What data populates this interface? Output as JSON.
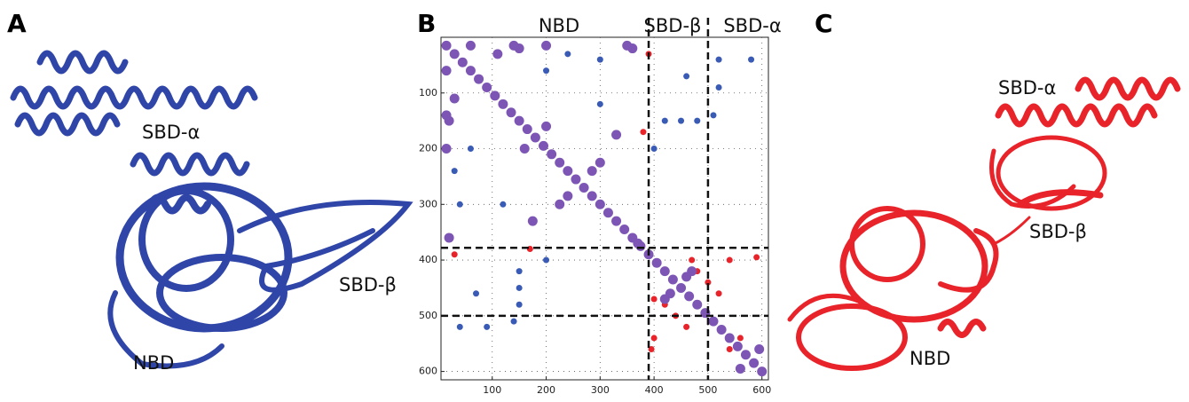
{
  "panels": [
    {
      "label": "A",
      "annotations": [
        "SBD-α",
        "SBD-β",
        "NBD"
      ]
    },
    {
      "label": "B"
    },
    {
      "label": "C",
      "annotations": [
        "SBD-α",
        "SBD-β",
        "NBD"
      ]
    }
  ],
  "chart_data": {
    "type": "scatter",
    "region_labels": [
      "NBD",
      "SBD-β",
      "SBD-α"
    ],
    "xlim": [
      5,
      612
    ],
    "ylim": [
      0,
      615
    ],
    "y_inverted": true,
    "xticks": [
      100,
      200,
      300,
      400,
      500,
      600
    ],
    "yticks": [
      100,
      200,
      300,
      400,
      500,
      600
    ],
    "grid": true,
    "dividers_x": [
      390,
      500
    ],
    "dividers_y": [
      378,
      500
    ],
    "series": [
      {
        "color": "#e8232a",
        "x": [
          470,
          480,
          500,
          520,
          540,
          400,
          420,
          440,
          460,
          400,
          380,
          170,
          390,
          30,
          560,
          540,
          395,
          590
        ],
        "y": [
          400,
          420,
          440,
          460,
          400,
          470,
          480,
          500,
          520,
          540,
          170,
          380,
          30,
          390,
          540,
          560,
          560,
          395
        ]
      },
      {
        "color": "#3a5bb5",
        "x": [
          420,
          450,
          480,
          510,
          520,
          520,
          580,
          460,
          150,
          150,
          150,
          140,
          90,
          40,
          70,
          240,
          30,
          300,
          40,
          120,
          300,
          60,
          200,
          400,
          200
        ],
        "y": [
          150,
          150,
          150,
          140,
          90,
          40,
          40,
          70,
          420,
          450,
          480,
          510,
          520,
          520,
          460,
          30,
          240,
          40,
          300,
          300,
          120,
          200,
          60,
          200,
          400
        ]
      },
      {
        "color": "#7d55b4",
        "x": [
          15,
          30,
          45,
          60,
          75,
          90,
          105,
          120,
          135,
          150,
          165,
          180,
          195,
          210,
          225,
          240,
          255,
          270,
          285,
          300,
          315,
          330,
          345,
          360,
          375,
          390,
          405,
          420,
          435,
          450,
          465,
          480,
          495,
          510,
          525,
          540,
          555,
          570,
          585,
          600,
          240,
          285,
          225,
          300,
          420,
          470,
          430,
          460,
          560,
          595,
          30,
          20,
          110,
          150,
          200,
          160,
          360,
          20,
          60,
          140,
          200,
          350,
          15,
          15,
          15,
          370,
          175,
          330
        ],
        "y": [
          15,
          30,
          45,
          60,
          75,
          90,
          105,
          120,
          135,
          150,
          165,
          180,
          195,
          210,
          225,
          240,
          255,
          270,
          285,
          300,
          315,
          330,
          345,
          360,
          375,
          390,
          405,
          420,
          435,
          450,
          465,
          480,
          495,
          510,
          525,
          540,
          555,
          570,
          585,
          600,
          285,
          240,
          300,
          225,
          470,
          420,
          460,
          430,
          595,
          560,
          110,
          150,
          30,
          20,
          160,
          200,
          20,
          360,
          15,
          15,
          15,
          15,
          60,
          140,
          200,
          370,
          330,
          175
        ]
      }
    ]
  }
}
